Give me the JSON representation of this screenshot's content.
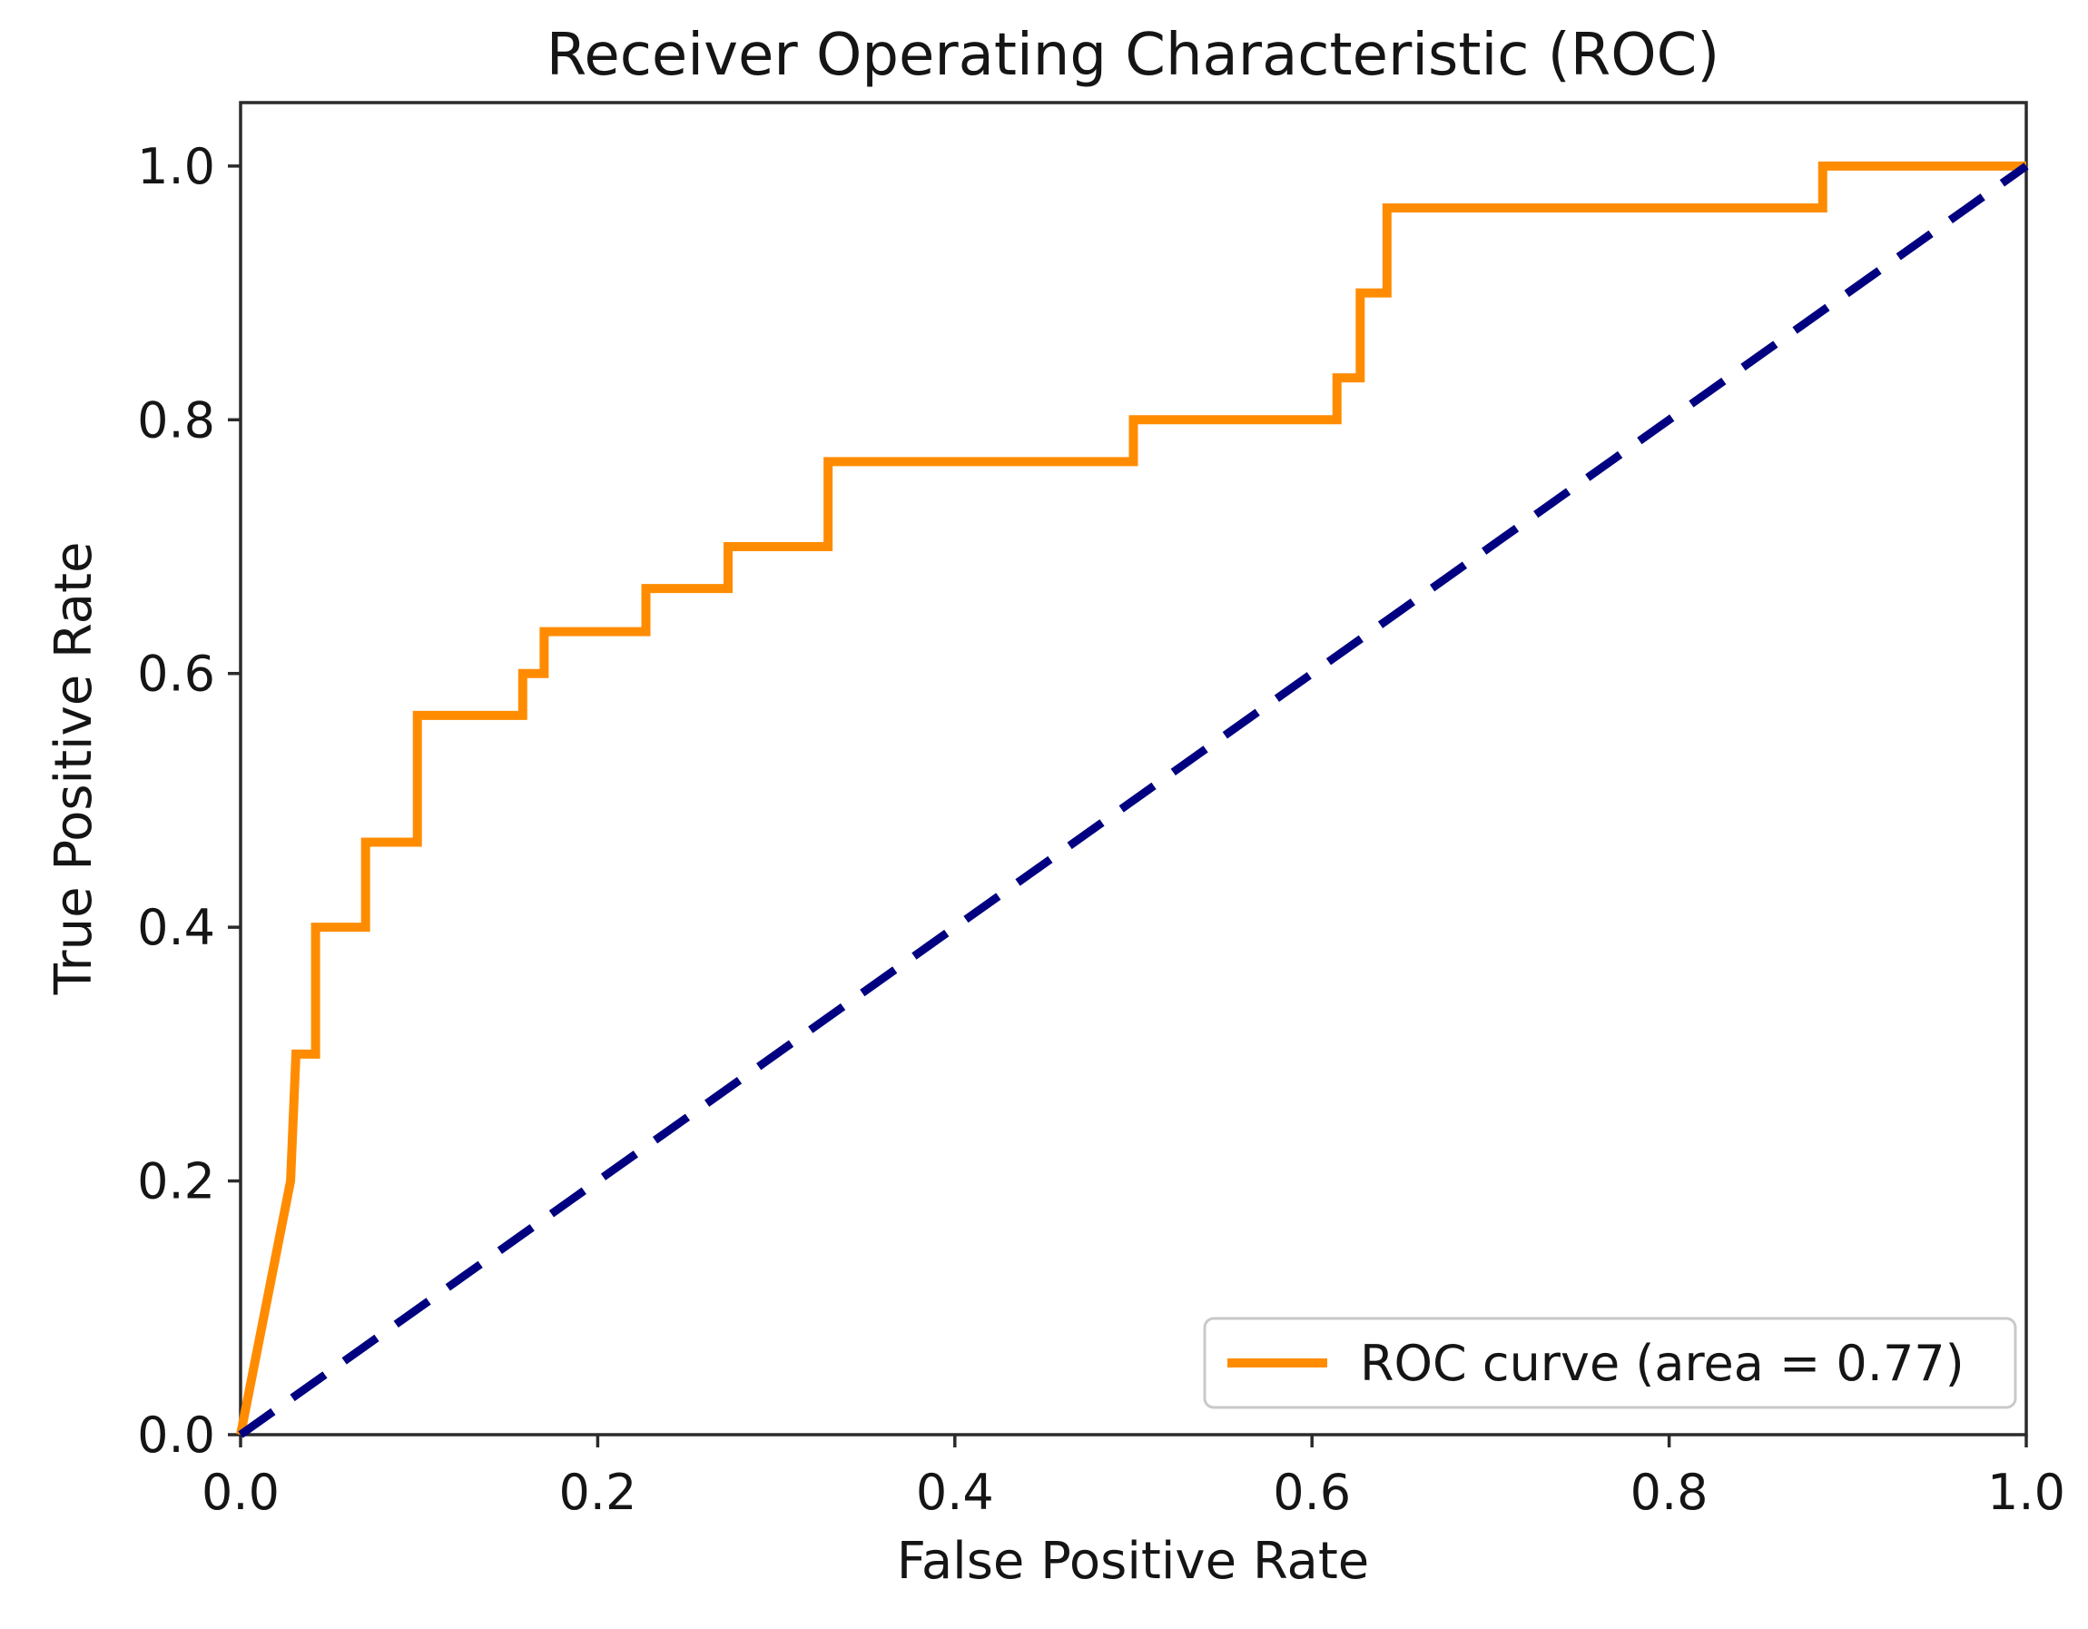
{
  "figure": {
    "title": "Receiver Operating Characteristic (ROC)",
    "xlabel": "False Positive Rate",
    "ylabel": "True Positive Rate",
    "background": "#ffffff"
  },
  "legend": {
    "position": "lower right",
    "entries": [
      {
        "label": "ROC curve (area = 0.77)",
        "color": "#ff8c00",
        "line_style": "solid"
      }
    ]
  },
  "colors": {
    "roc_curve": "#ff8c00",
    "chance_line": "#000080",
    "spine": "#2b2b2b",
    "text": "#151515",
    "legend_border": "#c9c9c9",
    "legend_fill": "#ffffff"
  },
  "chart_data": {
    "type": "line",
    "title": "Receiver Operating Characteristic (ROC)",
    "xlabel": "False Positive Rate",
    "ylabel": "True Positive Rate",
    "xlim": [
      0.0,
      1.0
    ],
    "ylim": [
      0.0,
      1.05
    ],
    "grid": false,
    "legend_position": "lower right",
    "x_ticks": {
      "values": [
        0.0,
        0.2,
        0.4,
        0.6,
        0.8,
        1.0
      ],
      "labels": [
        "0.0",
        "0.2",
        "0.4",
        "0.6",
        "0.8",
        "1.0"
      ]
    },
    "y_ticks": {
      "values": [
        0.0,
        0.2,
        0.4,
        0.6,
        0.8,
        1.0
      ],
      "labels": [
        "0.0",
        "0.2",
        "0.4",
        "0.6",
        "0.8",
        "1.0"
      ]
    },
    "series": [
      {
        "name": "ROC curve (area = 0.77)",
        "auc": 0.77,
        "in_legend": true,
        "color": "#ff8c00",
        "line_width": 10,
        "dash": null,
        "points": [
          [
            0.0,
            0.0
          ],
          [
            0.028,
            0.2
          ],
          [
            0.031,
            0.3
          ],
          [
            0.042,
            0.3
          ],
          [
            0.042,
            0.4
          ],
          [
            0.07,
            0.4
          ],
          [
            0.07,
            0.467
          ],
          [
            0.099,
            0.467
          ],
          [
            0.099,
            0.567
          ],
          [
            0.158,
            0.567
          ],
          [
            0.158,
            0.6
          ],
          [
            0.17,
            0.6
          ],
          [
            0.17,
            0.633
          ],
          [
            0.227,
            0.633
          ],
          [
            0.227,
            0.667
          ],
          [
            0.273,
            0.667
          ],
          [
            0.273,
            0.7
          ],
          [
            0.329,
            0.7
          ],
          [
            0.329,
            0.767
          ],
          [
            0.5,
            0.767
          ],
          [
            0.5,
            0.8
          ],
          [
            0.614,
            0.8
          ],
          [
            0.614,
            0.833
          ],
          [
            0.627,
            0.833
          ],
          [
            0.627,
            0.9
          ],
          [
            0.642,
            0.9
          ],
          [
            0.642,
            0.967
          ],
          [
            0.886,
            0.967
          ],
          [
            0.886,
            1.0
          ],
          [
            1.0,
            1.0
          ]
        ]
      },
      {
        "name": "chance_diagonal",
        "in_legend": false,
        "color": "#000080",
        "line_width": 9,
        "dash": [
          44,
          26
        ],
        "points": [
          [
            0.0,
            0.0
          ],
          [
            1.0,
            1.0
          ]
        ]
      }
    ]
  }
}
